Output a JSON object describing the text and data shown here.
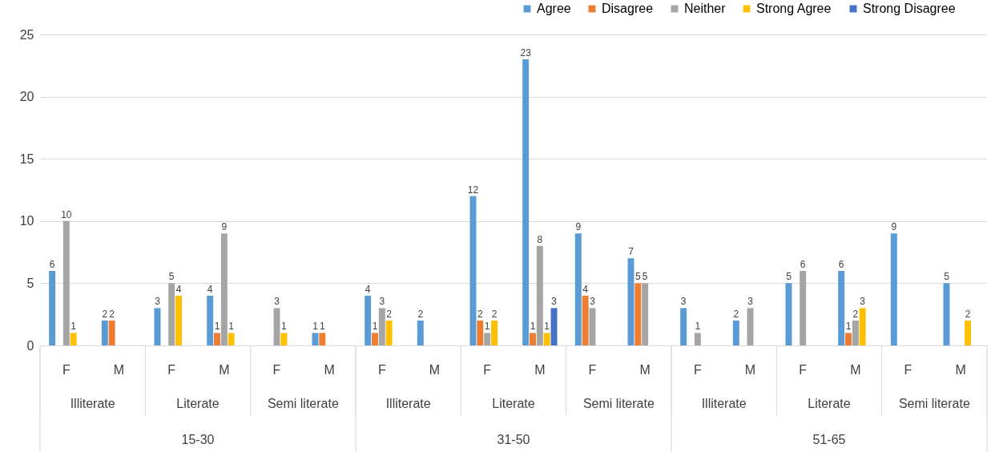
{
  "chart_data": {
    "type": "bar",
    "categories": [
      "F",
      "M",
      "F",
      "M",
      "F",
      "M",
      "F",
      "M",
      "F",
      "M",
      "F",
      "M",
      "F",
      "M",
      "F",
      "M",
      "F",
      "M"
    ],
    "series": [
      {
        "name": "Agree",
        "color": "#5b9bd5",
        "values": [
          6,
          2,
          3,
          4,
          null,
          1,
          4,
          2,
          12,
          23,
          9,
          7,
          3,
          2,
          5,
          6,
          9,
          5
        ]
      },
      {
        "name": "Disagree",
        "color": "#ed7d31",
        "values": [
          null,
          2,
          null,
          1,
          null,
          1,
          1,
          null,
          2,
          1,
          4,
          5,
          null,
          null,
          null,
          1,
          null,
          null
        ]
      },
      {
        "name": "Neither",
        "color": "#a5a5a5",
        "values": [
          10,
          null,
          5,
          9,
          3,
          null,
          3,
          null,
          1,
          8,
          3,
          5,
          1,
          3,
          6,
          2,
          null,
          null
        ]
      },
      {
        "name": "Strong Agree",
        "color": "#ffc000",
        "values": [
          1,
          null,
          4,
          1,
          1,
          null,
          2,
          null,
          2,
          1,
          null,
          null,
          null,
          null,
          null,
          3,
          null,
          2
        ]
      },
      {
        "name": "Strong Disagree",
        "color": "#4472c4",
        "values": [
          null,
          null,
          null,
          null,
          null,
          null,
          null,
          null,
          null,
          3,
          null,
          null,
          null,
          null,
          null,
          null,
          null,
          null
        ]
      }
    ],
    "annotations": [
      "Illiterate",
      "Literate",
      "Semi literate",
      "Illiterate",
      "Literate",
      "Semi literate",
      "Illiterate",
      "Literate",
      "Semi literate",
      "15-30",
      "31-50",
      "51-65"
    ],
    "ylim": [
      0,
      25
    ],
    "yticks": [
      0,
      5,
      10,
      15,
      20,
      25
    ],
    "grid": "y",
    "legend": "top right",
    "data_labels": true
  }
}
